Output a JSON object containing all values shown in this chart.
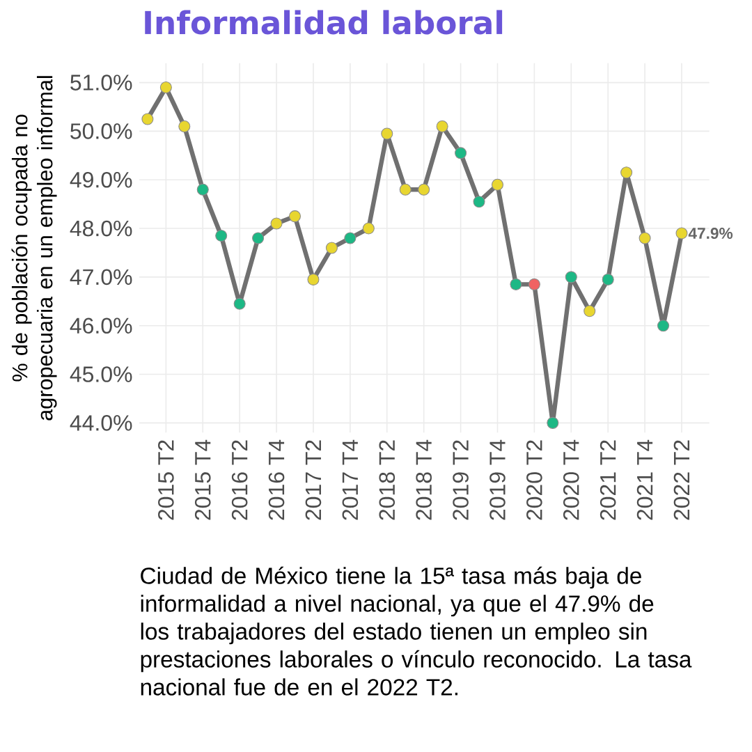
{
  "chart_data": {
    "type": "line",
    "title": "Informalidad laboral",
    "ylabel": "% de población ocupada no agropecuaria en un empleo informal",
    "categories": [
      null,
      "2015 T2",
      null,
      "2015 T4",
      null,
      "2016 T2",
      null,
      "2016 T4",
      null,
      "2017 T2",
      null,
      "2017 T4",
      null,
      "2018 T2",
      null,
      "2018 T4",
      null,
      "2019 T2",
      null,
      "2019 T4",
      null,
      "2020 T2",
      null,
      "2020 T4",
      null,
      "2021 T2",
      null,
      "2021 T4",
      null,
      "2022 T2"
    ],
    "series": [
      {
        "color": "#707070",
        "values": [
          50.25,
          50.9,
          50.1,
          48.8,
          47.85,
          46.45,
          47.8,
          48.1,
          48.25,
          46.95,
          47.6,
          47.8,
          48.0,
          49.95,
          48.8,
          48.8,
          50.1,
          49.55,
          48.55,
          48.9,
          46.85,
          46.85,
          44.0,
          47.0,
          46.3,
          46.95,
          49.15,
          47.8,
          46.0,
          47.9
        ],
        "colors": [
          "#e8d630",
          "#e8d630",
          "#e8d630",
          "#1db885",
          "#1db885",
          "#1db885",
          "#1db885",
          "#e8d630",
          "#e8d630",
          "#e8d630",
          "#e8d630",
          "#1db885",
          "#e8d630",
          "#e8d630",
          "#e8d630",
          "#e8d630",
          "#e8d630",
          "#1db885",
          "#1db885",
          "#e8d630",
          "#1db885",
          "#f06262",
          "#1db885",
          "#1db885",
          "#e8d630",
          "#1db885",
          "#e8d630",
          "#e8d630",
          "#1db885",
          "#e8d630"
        ]
      }
    ],
    "ylim": [
      43.8,
      51.4
    ],
    "yticks": [
      {
        "value": 44,
        "label": "44.0%"
      },
      {
        "value": 45,
        "label": "45.0%"
      },
      {
        "value": 46,
        "label": "46.0%"
      },
      {
        "value": 47,
        "label": "47.0%"
      },
      {
        "value": 48,
        "label": "48.0%"
      },
      {
        "value": 49,
        "label": "49.0%"
      },
      {
        "value": 50,
        "label": "50.0%"
      },
      {
        "value": 51,
        "label": "51.0%"
      }
    ],
    "grid": true,
    "marker": "circle",
    "line_style": "solid",
    "annotations": [
      {
        "text": "47.9%",
        "x": "2022 T2",
        "y": 47.9
      },
      "Ciudad de México tiene la 15ª tasa más baja de informalidad a nivel nacional, ya que el 47.9% de los trabajadores del estado tienen un empleo sin prestaciones laborales o vínculo reconocido. La tasa nacional fue de en el 2022 T2."
    ]
  }
}
